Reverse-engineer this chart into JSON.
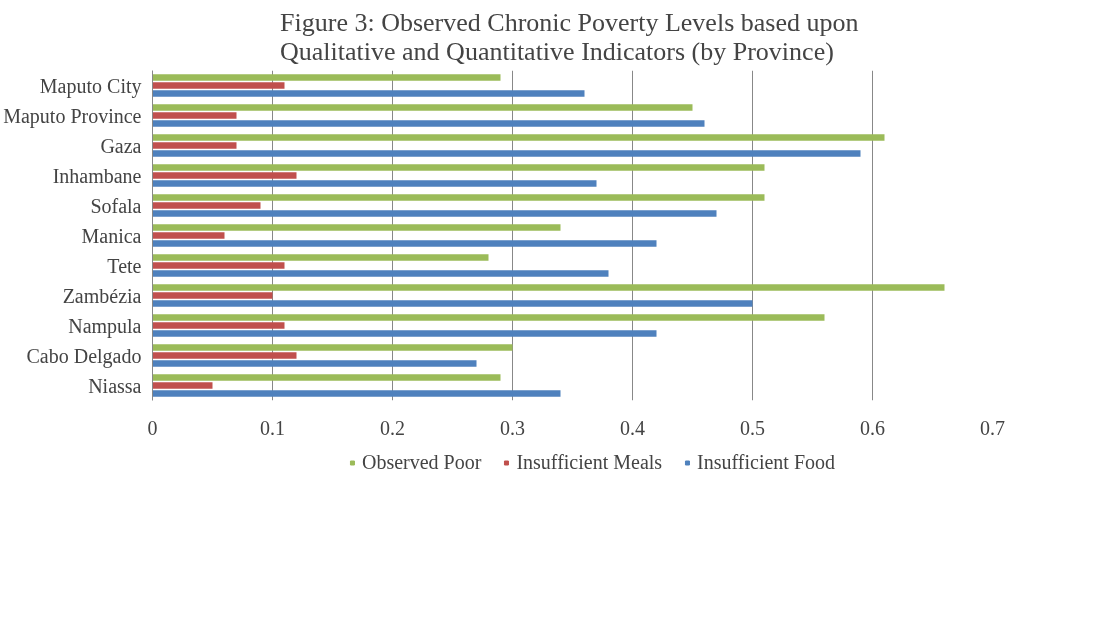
{
  "chart_data": {
    "type": "bar",
    "orientation": "horizontal",
    "title": "Figure 3:  Observed Chronic Poverty Levels based upon\nQualitative and Quantitative Indicators (by Province)",
    "categories": [
      "Maputo City",
      "Maputo Province",
      "Gaza",
      "Inhambane",
      "Sofala",
      "Manica",
      "Tete",
      "Zambézia",
      "Nampula",
      "Cabo Delgado",
      "Niassa"
    ],
    "series": [
      {
        "name": "Observed Poor",
        "color": "#9bbb59",
        "values": [
          0.29,
          0.45,
          0.61,
          0.51,
          0.51,
          0.34,
          0.28,
          0.66,
          0.56,
          0.3,
          0.29
        ]
      },
      {
        "name": "Insufficient Meals",
        "color": "#c0504d",
        "values": [
          0.11,
          0.07,
          0.07,
          0.12,
          0.09,
          0.06,
          0.11,
          0.1,
          0.11,
          0.12,
          0.05
        ]
      },
      {
        "name": "Insufficient Food",
        "color": "#4f81bd",
        "values": [
          0.36,
          0.46,
          0.59,
          0.37,
          0.47,
          0.42,
          0.38,
          0.5,
          0.42,
          0.27,
          0.34
        ]
      }
    ],
    "xlim": [
      0,
      0.7
    ],
    "xticks": [
      0,
      0.1,
      0.2,
      0.3,
      0.4,
      0.5,
      0.6,
      0.7
    ],
    "grid": "x",
    "legend": "bottom"
  }
}
